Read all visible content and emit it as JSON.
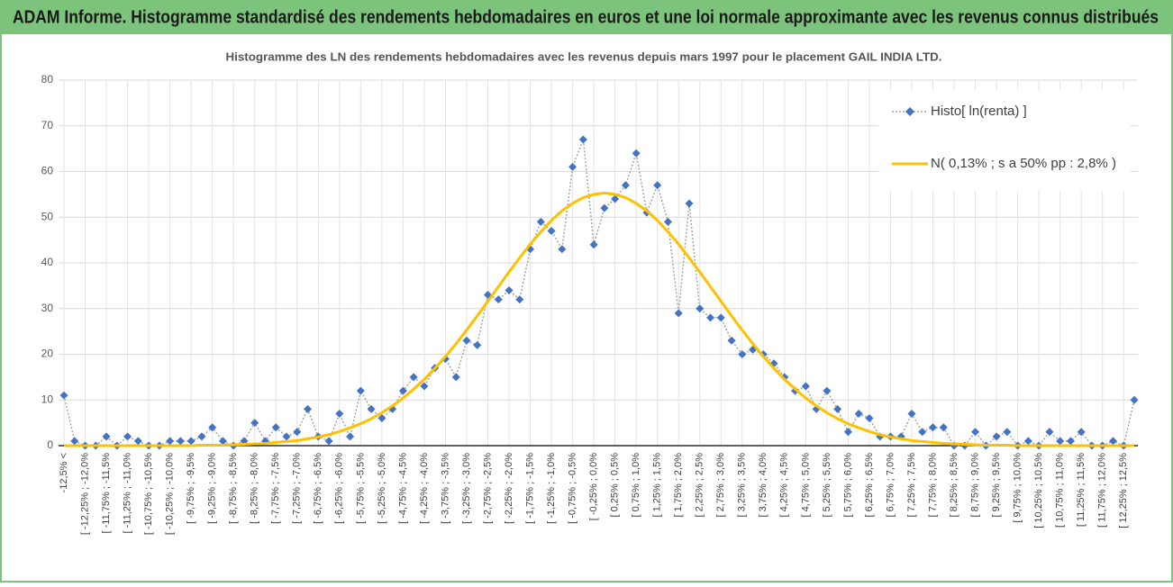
{
  "chart_data": {
    "type": "line",
    "title": "ADAM Informe. Histogramme standardisé des rendements hebdomadaires en euros et une loi normale approximante avec les revenus connus distribués",
    "subtitle": "Histogramme des LN des rendements hebdomadaires avec les revenus depuis mars 1997 pour le placement GAIL INDIA LTD.",
    "categories": [
      "-12,5% <",
      null,
      "[ -12,25% ; -12,0%",
      null,
      "[ -11,75% ; -11,5%",
      null,
      "[ -11,25% ; -11,0%",
      null,
      "[ -10,75% ; -10,5%",
      null,
      "[ -10,25% ; -10,0%",
      null,
      "[ -9,75% ; -9,5%",
      null,
      "[ -9,25% ; -9,0%",
      null,
      "[ -8,75% ; -8,5%",
      null,
      "[ -8,25% ; -8,0%",
      null,
      "[ -7,75% ; -7,5%",
      null,
      "[ -7,25% ; -7,0%",
      null,
      "[ -6,75% ; -6,5%",
      null,
      "[ -6,25% ; -6,0%",
      null,
      "[ -5,75% ; -5,5%",
      null,
      "[ -5,25% ; -5,0%",
      null,
      "[ -4,75% ; -4,5%",
      null,
      "[ -4,25% ; -4,0%",
      null,
      "[ -3,75% ; -3,5%",
      null,
      "[ -3,25% ; -3,0%",
      null,
      "[ -2,75% ; -2,5%",
      null,
      "[ -2,25% ; -2,0%",
      null,
      "[ -1,75% ; -1,5%",
      null,
      "[ -1,25% ; -1,0%",
      null,
      "[ -0,75% ; -0,5%",
      null,
      "[ -0,25% ; 0,0%",
      null,
      "[ 0,25% ; 0,5%",
      null,
      "[ 0,75% ; 1,0%",
      null,
      "[ 1,25% ; 1,5%",
      null,
      "[ 1,75% ; 2,0%",
      null,
      "[ 2,25% ; 2,5%",
      null,
      "[ 2,75% ; 3,0%",
      null,
      "[ 3,25% ; 3,5%",
      null,
      "[ 3,75% ; 4,0%",
      null,
      "[ 4,25% ; 4,5%",
      null,
      "[ 4,75% ; 5,0%",
      null,
      "[ 5,25% ; 5,5%",
      null,
      "[ 5,75% ; 6,0%",
      null,
      "[ 6,25% ; 6,5%",
      null,
      "[ 6,75% ; 7,0%",
      null,
      "[ 7,25% ; 7,5%",
      null,
      "[ 7,75% ; 8,0%",
      null,
      "[ 8,25% ; 8,5%",
      null,
      "[ 8,75% ; 9,0%",
      null,
      "[ 9,25% ; 9,5%",
      null,
      "[ 9,75% ; 10,0%",
      null,
      "[ 10,25% ; 10,5%",
      null,
      "[ 10,75% ; 11,0%",
      null,
      "[ 11,25% ; 11,5%",
      null,
      "[ 11,75% ; 12,0%",
      null,
      "[ 12,25% ; 12,5%",
      null
    ],
    "series": [
      {
        "name": "Histo[ ln(renta) ]",
        "color": "#4472c4",
        "line_color": "#a5a5a5",
        "values": [
          11,
          1,
          0,
          0,
          2,
          0,
          2,
          1,
          0,
          0,
          1,
          1,
          1,
          2,
          4,
          1,
          0,
          1,
          5,
          1,
          4,
          2,
          3,
          8,
          2,
          1,
          7,
          2,
          12,
          8,
          6,
          8,
          12,
          15,
          13,
          17,
          19,
          15,
          23,
          22,
          33,
          32,
          34,
          32,
          43,
          49,
          47,
          43,
          61,
          67,
          44,
          52,
          54,
          57,
          64,
          51,
          57,
          49,
          29,
          53,
          30,
          28,
          28,
          23,
          20,
          21,
          20,
          18,
          15,
          12,
          13,
          8,
          12,
          8,
          3,
          7,
          6,
          2,
          2,
          2,
          7,
          3,
          4,
          4,
          0,
          0,
          3,
          0,
          2,
          3,
          0,
          1,
          0,
          3,
          1,
          1,
          3,
          0,
          0,
          1,
          0,
          10
        ]
      },
      {
        "name": "N( 0,13% ; s a 50% pp : 2,8% )",
        "color": "#ffc000",
        "values": [
          0,
          0,
          0,
          0,
          0,
          0,
          0,
          0,
          0,
          0,
          0,
          0,
          0,
          0.1,
          0.1,
          0.1,
          0.2,
          0.3,
          0.4,
          0.5,
          0.7,
          0.9,
          1.1,
          1.5,
          1.9,
          2.4,
          3.1,
          3.9,
          4.8,
          5.9,
          7.2,
          8.7,
          10.4,
          12.4,
          14.5,
          16.9,
          19.5,
          22.3,
          25.3,
          28.4,
          31.6,
          34.8,
          38.0,
          41.1,
          44.1,
          46.8,
          49.3,
          51.4,
          53.0,
          54.3,
          55.0,
          55.3,
          55.0,
          54.3,
          53.0,
          51.4,
          49.3,
          46.8,
          44.1,
          41.1,
          38.0,
          34.8,
          31.6,
          28.4,
          25.3,
          22.3,
          19.5,
          16.9,
          14.5,
          12.4,
          10.4,
          8.7,
          7.2,
          5.9,
          4.8,
          3.9,
          3.1,
          2.4,
          1.9,
          1.5,
          1.1,
          0.9,
          0.7,
          0.5,
          0.4,
          0.3,
          0.2,
          0.1,
          0.1,
          0.1,
          0,
          0,
          0,
          0,
          0,
          0,
          0,
          0,
          0,
          0,
          0,
          0
        ]
      }
    ],
    "ylim": [
      0,
      80
    ],
    "yticks": [
      0,
      10,
      20,
      30,
      40,
      50,
      60,
      70,
      80
    ],
    "grid": true,
    "legend": "upper right"
  }
}
